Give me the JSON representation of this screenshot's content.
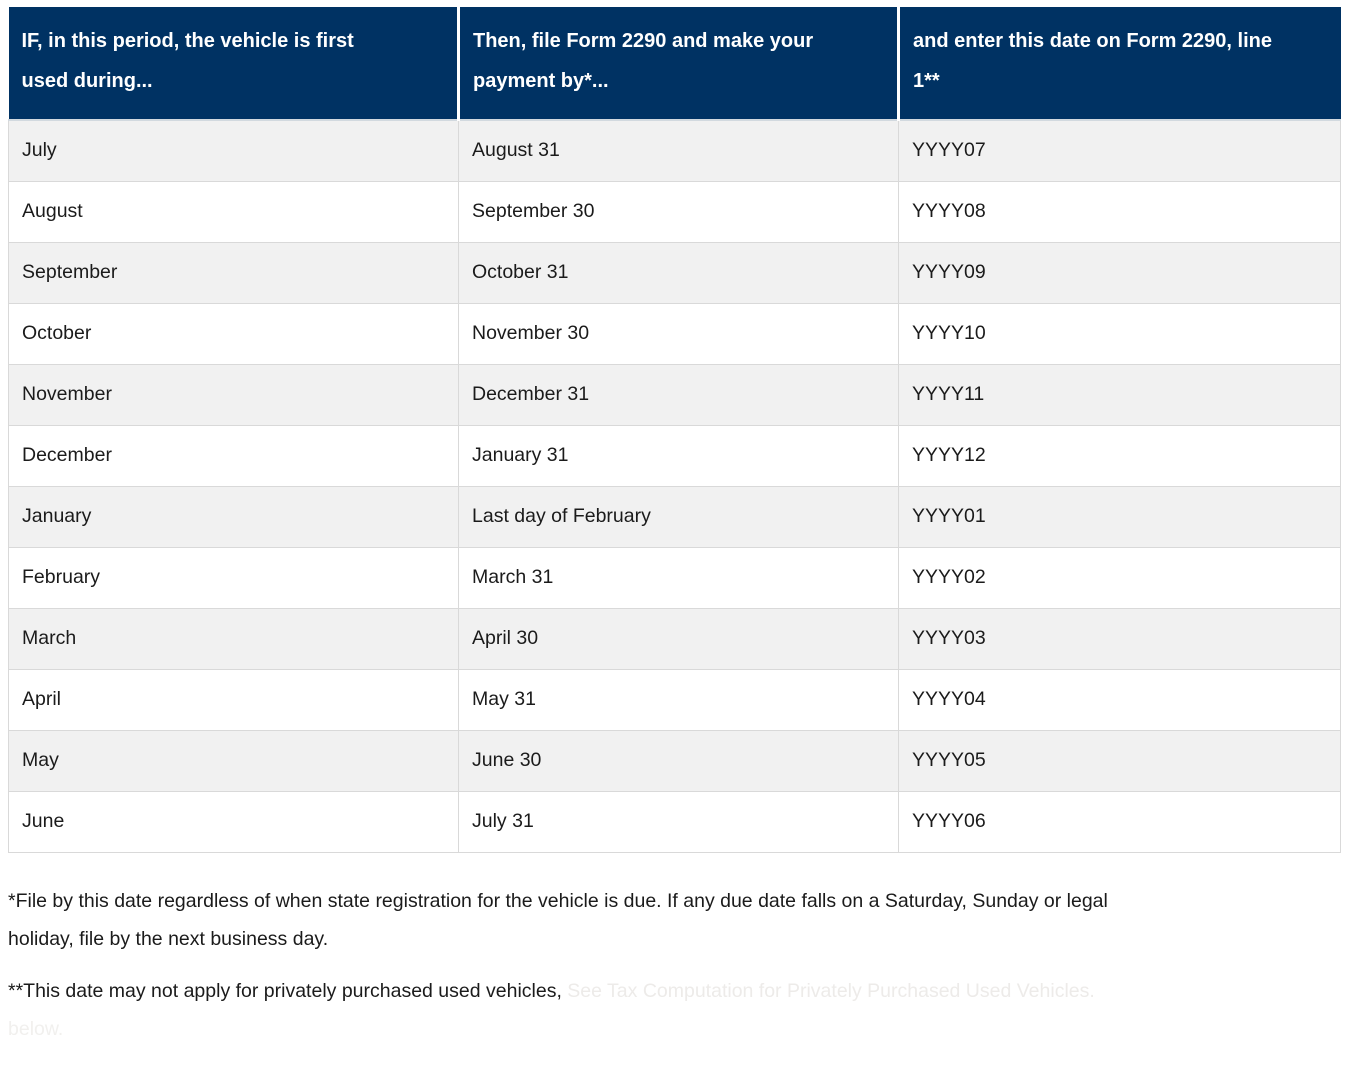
{
  "table": {
    "columns": [
      "IF, in this period, the vehicle is first used during...",
      "Then, file Form 2290 and make your payment by*...",
      "and enter this date on Form 2290, line 1**"
    ],
    "rows": [
      {
        "month": "July",
        "file_by": "August 31",
        "enter_date": "YYYY07"
      },
      {
        "month": "August",
        "file_by": "September 30",
        "enter_date": "YYYY08"
      },
      {
        "month": "September",
        "file_by": "October 31",
        "enter_date": "YYYY09"
      },
      {
        "month": "October",
        "file_by": "November 30",
        "enter_date": "YYYY10"
      },
      {
        "month": "November",
        "file_by": "December 31",
        "enter_date": "YYYY11"
      },
      {
        "month": "December",
        "file_by": "January 31",
        "enter_date": "YYYY12"
      },
      {
        "month": "January",
        "file_by": "Last day of February",
        "enter_date": "YYYY01"
      },
      {
        "month": "February",
        "file_by": "March 31",
        "enter_date": "YYYY02"
      },
      {
        "month": "March",
        "file_by": "April 30",
        "enter_date": "YYYY03"
      },
      {
        "month": "April",
        "file_by": "May 31",
        "enter_date": "YYYY04"
      },
      {
        "month": "May",
        "file_by": "June 30",
        "enter_date": "YYYY05"
      },
      {
        "month": "June",
        "file_by": "July 31",
        "enter_date": "YYYY06"
      }
    ]
  },
  "footnotes": {
    "note1_line1": "*File by this date regardless of when state registration for the vehicle is due. If any due date falls on a Saturday, Sunday or legal",
    "note1_line2": "holiday, file by the next business day.",
    "note2": "**This date may not apply for privately purchased used vehicles,",
    "note2_ghost": " See Tax Computation for Privately Purchased Used Vehicles.",
    "note2_ghost_line2": "below."
  },
  "colors": {
    "header_background": "#003263",
    "header_text": "#ffffff",
    "row_stripe": "#f1f1f1",
    "row_border": "#d9d9d9",
    "body_text": "#1b1b1b"
  }
}
